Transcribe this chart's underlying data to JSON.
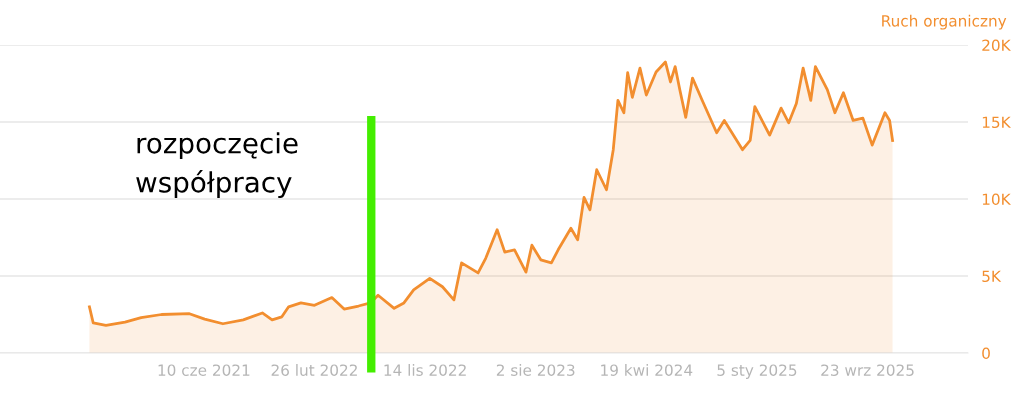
{
  "chart_data": {
    "type": "area",
    "ylabel": "Ruch organiczny",
    "x": [
      "2020-09-13",
      "2020-09-22",
      "2020-10-22",
      "2020-12-06",
      "2021-01-13",
      "2021-03-02",
      "2021-05-07",
      "2021-06-12",
      "2021-07-25",
      "2021-09-11",
      "2021-10-26",
      "2021-11-18",
      "2021-12-11",
      "2021-12-27",
      "2022-01-25",
      "2022-02-26",
      "2022-04-08",
      "2022-05-07",
      "2022-06-10",
      "2022-07-08",
      "2022-07-26",
      "2022-09-02",
      "2022-09-25",
      "2022-10-18",
      "2022-11-25",
      "2022-12-25",
      "2023-01-21",
      "2023-02-08",
      "2023-03-19",
      "2023-04-06",
      "2023-05-03",
      "2023-05-21",
      "2023-06-13",
      "2023-07-10",
      "2023-07-24",
      "2023-08-14",
      "2023-09-08",
      "2023-09-24",
      "2023-10-24",
      "2023-11-09",
      "2023-11-24",
      "2023-12-08",
      "2023-12-24",
      "2024-01-16",
      "2024-02-01",
      "2024-02-12",
      "2024-02-26",
      "2024-03-06",
      "2024-03-17",
      "2024-04-04",
      "2024-04-19",
      "2024-05-12",
      "2024-06-03",
      "2024-06-15",
      "2024-06-26",
      "2024-07-07",
      "2024-07-21",
      "2024-08-06",
      "2024-08-29",
      "2024-10-02",
      "2024-10-20",
      "2024-12-02",
      "2024-12-20",
      "2024-12-31",
      "2025-02-04",
      "2025-03-03",
      "2025-03-21",
      "2025-04-08",
      "2025-04-24",
      "2025-05-12",
      "2025-05-23",
      "2025-06-20",
      "2025-07-08",
      "2025-07-28",
      "2025-08-20",
      "2025-09-12",
      "2025-10-04",
      "2025-11-03",
      "2025-11-14",
      "2025-11-21"
    ],
    "series": [
      {
        "color": "#f28e2f",
        "values": [
          3000,
          1950,
          1800,
          2000,
          2300,
          2500,
          2550,
          2200,
          1900,
          2150,
          2600,
          2150,
          2350,
          3000,
          3250,
          3100,
          3600,
          2850,
          3050,
          3250,
          3750,
          2900,
          3250,
          4100,
          4850,
          4300,
          3450,
          5850,
          5200,
          6150,
          8000,
          6550,
          6700,
          5250,
          7000,
          6050,
          5850,
          6700,
          8100,
          7350,
          10100,
          9300,
          11900,
          10600,
          13200,
          16400,
          15600,
          18200,
          16600,
          18500,
          16750,
          18250,
          18900,
          17600,
          18600,
          17100,
          15300,
          17850,
          16400,
          14300,
          15100,
          13200,
          13800,
          16000,
          14150,
          15900,
          14950,
          16200,
          18500,
          16400,
          18600,
          17100,
          15600,
          16900,
          15100,
          15250,
          13500,
          15600,
          15100,
          13800
        ]
      }
    ],
    "xlim": [
      "2020-02-15",
      "2026-05-18"
    ],
    "xticks": [
      {
        "value": "2021-06-10",
        "label": "10 cze 2021"
      },
      {
        "value": "2022-02-26",
        "label": "26 lut 2022"
      },
      {
        "value": "2022-11-14",
        "label": "14 lis 2022"
      },
      {
        "value": "2023-08-02",
        "label": "2 sie 2023"
      },
      {
        "value": "2024-04-19",
        "label": "19 kwi 2024"
      },
      {
        "value": "2025-01-05",
        "label": "5 sty 2025"
      },
      {
        "value": "2025-09-23",
        "label": "23 wrz 2025"
      }
    ],
    "ylim": [
      0,
      20000
    ],
    "yticks": [
      {
        "value": 0,
        "label": "0"
      },
      {
        "value": 5000,
        "label": "5K"
      },
      {
        "value": 10000,
        "label": "10K"
      },
      {
        "value": 15000,
        "label": "15K"
      },
      {
        "value": 20000,
        "label": "20K"
      }
    ],
    "grid": "y",
    "ref_lines": [
      {
        "axis": "x",
        "value": "2022-07-10",
        "label": "rozpoczęcie\nwspółpracy",
        "color": "#44ee00"
      }
    ]
  }
}
